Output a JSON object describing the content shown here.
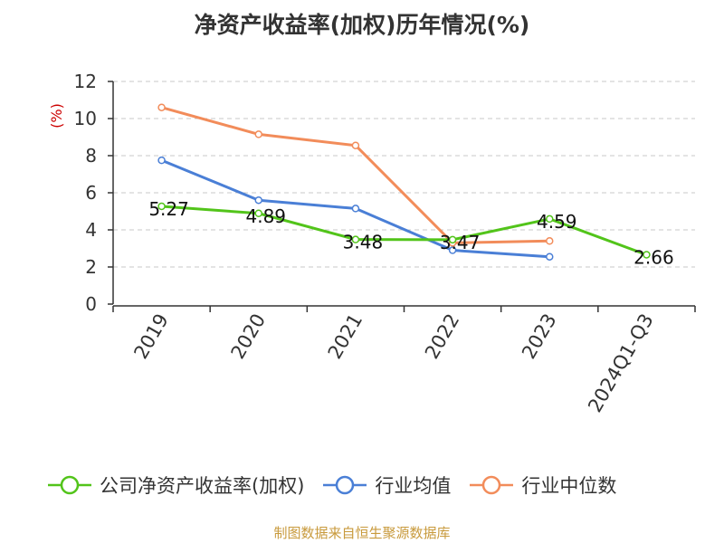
{
  "title": "净资产收益率(加权)历年情况(%)",
  "footer": "制图数据来自恒生聚源数据库",
  "chart_data": {
    "type": "line",
    "title": "净资产收益率(加权)历年情况(%)",
    "ylabel": "(%)",
    "xlabel": "",
    "categories": [
      "2019",
      "2020",
      "2021",
      "2022",
      "2023",
      "2024Q1-Q3"
    ],
    "yticks": [
      0,
      2,
      4,
      6,
      8,
      10,
      12
    ],
    "ylim": [
      0,
      12
    ],
    "grid": true,
    "legend_position": "bottom",
    "series": [
      {
        "name": "公司净资产收益率(加权)",
        "color": "#52c41a",
        "show_labels": true,
        "values": [
          5.27,
          4.89,
          3.48,
          3.47,
          4.59,
          2.66
        ]
      },
      {
        "name": "行业均值",
        "color": "#4a7fd6",
        "show_labels": false,
        "values": [
          7.75,
          5.6,
          5.15,
          2.9,
          2.55,
          null
        ]
      },
      {
        "name": "行业中位数",
        "color": "#f28c5a",
        "show_labels": false,
        "values": [
          10.6,
          9.15,
          8.55,
          3.3,
          3.4,
          null
        ]
      }
    ]
  }
}
